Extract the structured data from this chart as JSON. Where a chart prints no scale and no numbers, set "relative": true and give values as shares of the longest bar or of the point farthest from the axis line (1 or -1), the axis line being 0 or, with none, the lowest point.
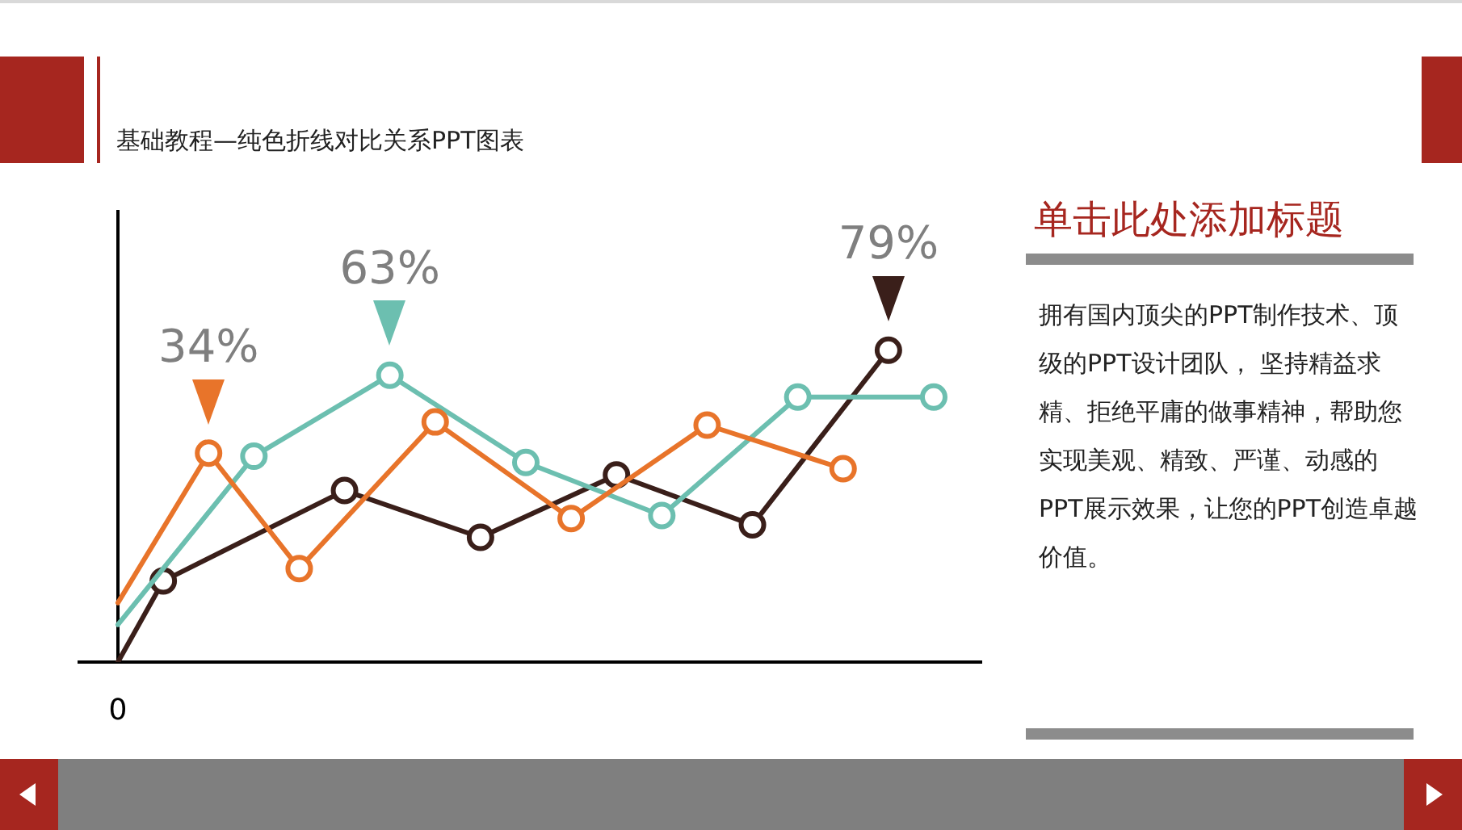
{
  "chart_data": {
    "type": "line",
    "relative": true,
    "title": "基础教程—纯色折线对比关系PPT图表",
    "marker": "circle",
    "line_style": "solid",
    "legend": false,
    "categories": [
      null,
      null,
      null,
      null,
      null,
      null,
      null,
      null,
      null,
      null,
      null,
      null,
      null,
      null,
      null,
      null,
      null,
      null,
      null
    ],
    "series": [
      {
        "color": "#e8742a",
        "values": [
          0.19,
          null,
          0.67,
          null,
          0.3,
          null,
          null,
          0.77,
          null,
          null,
          0.46,
          null,
          null,
          0.76,
          null,
          null,
          0.62,
          null,
          null
        ]
      },
      {
        "color": "#6cbfb0",
        "values": [
          0.12,
          null,
          null,
          0.66,
          null,
          null,
          0.92,
          null,
          null,
          0.64,
          null,
          null,
          0.47,
          null,
          null,
          0.85,
          null,
          null,
          0.85
        ]
      },
      {
        "color": "#3a1f1a",
        "values": [
          0,
          0.26,
          null,
          null,
          null,
          0.55,
          null,
          null,
          0.4,
          null,
          null,
          0.6,
          null,
          null,
          0.44,
          null,
          null,
          1,
          null
        ]
      }
    ],
    "annotations": [
      {
        "text": "34%",
        "y": 0.67
      },
      {
        "text": "63%",
        "y": 0.92
      },
      {
        "text": "79%",
        "y": 1
      },
      {
        "text": "0",
        "y": 0
      },
      "单击此处添加标题",
      "拥有国内顶尖的PPT制作技术、顶级的PPT设计团队， 坚持精益求精、拒绝平庸的做事精神，帮助您实现美观、精致、严谨、动感的PPT展示效果，让您的PPT创造卓越价值。"
    ]
  }
}
